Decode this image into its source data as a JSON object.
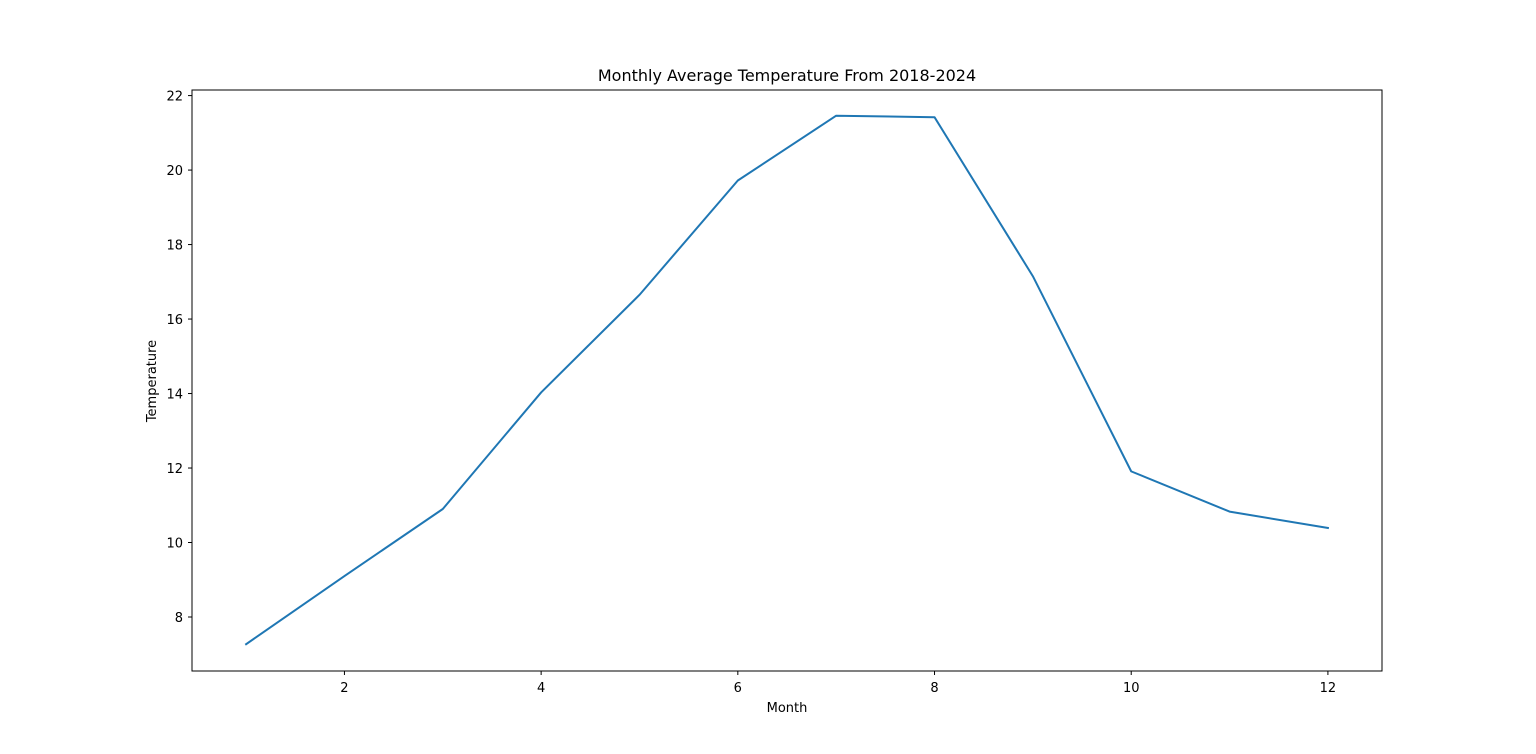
{
  "chart_data": {
    "type": "line",
    "title": "Monthly Average Temperature From 2018-2024",
    "xlabel": "Month",
    "ylabel": "Temperature",
    "xlim": [
      0.45,
      12.55
    ],
    "ylim": [
      6.55,
      22.15
    ],
    "x_ticks": [
      2,
      4,
      6,
      8,
      10,
      12
    ],
    "y_ticks": [
      8,
      10,
      12,
      14,
      16,
      18,
      20,
      22
    ],
    "grid": false,
    "series": [
      {
        "color": "#1f77b4",
        "x": [
          1,
          2,
          3,
          4,
          5,
          6,
          7,
          8,
          9,
          10,
          11,
          12
        ],
        "values": [
          7.27,
          9.1,
          10.9,
          14.03,
          16.65,
          19.72,
          21.46,
          21.42,
          17.15,
          11.91,
          10.83,
          10.39
        ]
      }
    ]
  }
}
